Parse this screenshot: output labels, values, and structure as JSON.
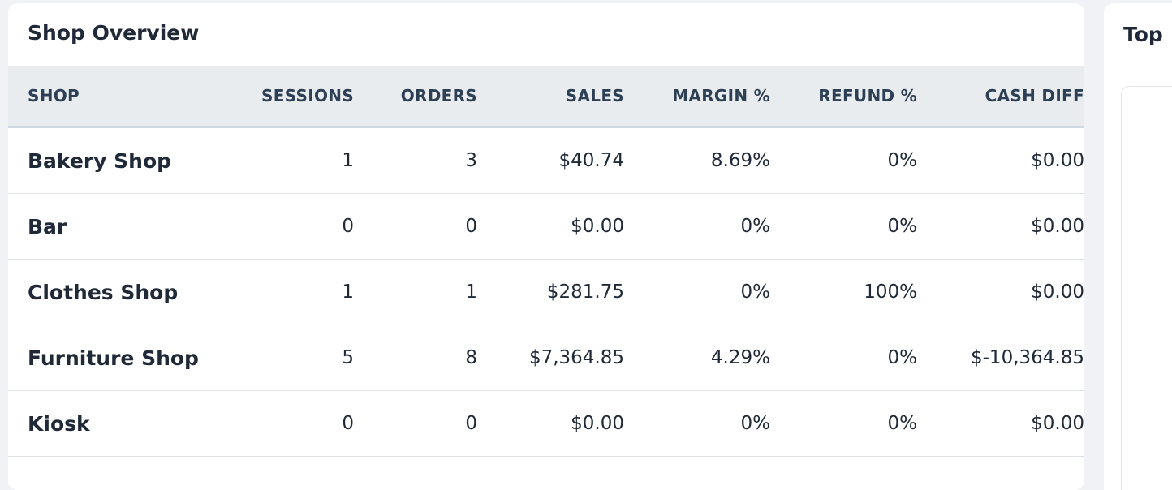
{
  "shop_overview": {
    "title": "Shop Overview",
    "columns": {
      "shop": "SHOP",
      "sessions": "SESSIONS",
      "orders": "ORDERS",
      "sales": "SALES",
      "margin": "MARGIN %",
      "refund": "REFUND %",
      "cash_diff": "CASH DIFF"
    },
    "rows": [
      {
        "shop": "Bakery Shop",
        "sessions": "1",
        "orders": "3",
        "sales": "$40.74",
        "margin": "8.69%",
        "refund": "0%",
        "cash_diff": "$0.00"
      },
      {
        "shop": "Bar",
        "sessions": "0",
        "orders": "0",
        "sales": "$0.00",
        "margin": "0%",
        "refund": "0%",
        "cash_diff": "$0.00"
      },
      {
        "shop": "Clothes Shop",
        "sessions": "1",
        "orders": "1",
        "sales": "$281.75",
        "margin": "0%",
        "refund": "100%",
        "cash_diff": "$0.00"
      },
      {
        "shop": "Furniture Shop",
        "sessions": "5",
        "orders": "8",
        "sales": "$7,364.85",
        "margin": "4.29%",
        "refund": "0%",
        "cash_diff": "$-10,364.85"
      },
      {
        "shop": "Kiosk",
        "sessions": "0",
        "orders": "0",
        "sales": "$0.00",
        "margin": "0%",
        "refund": "0%",
        "cash_diff": "$0.00"
      }
    ]
  },
  "side_panel": {
    "title": "Top"
  }
}
